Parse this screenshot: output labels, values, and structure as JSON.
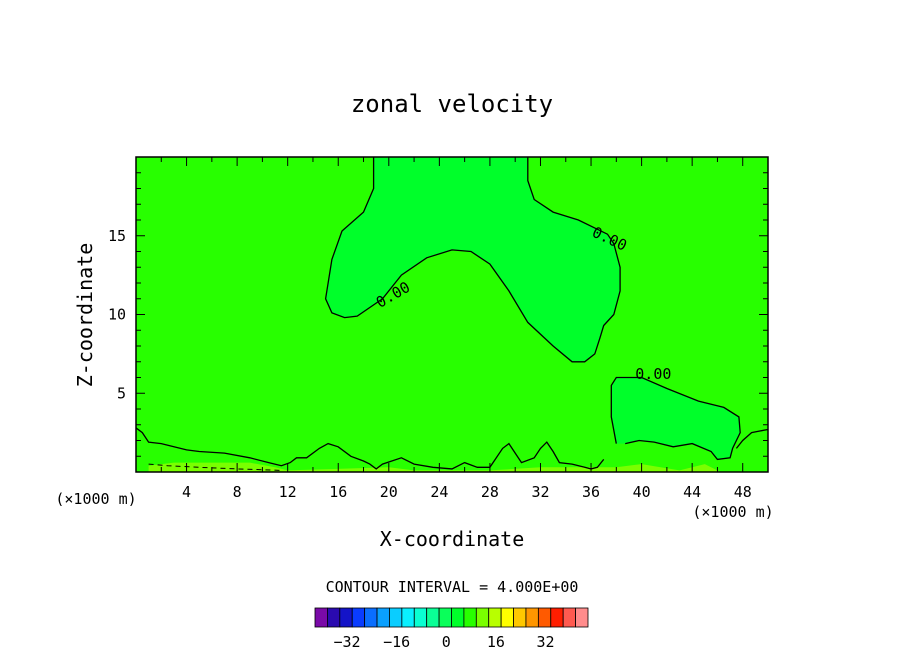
{
  "chart_data": {
    "type": "contour",
    "title": "zonal velocity",
    "xlabel": "X-coordinate",
    "ylabel": "Z-coordinate",
    "x_unit_left": "(×1000 m)",
    "x_unit_right": "(×1000 m)",
    "xlim": [
      0,
      50
    ],
    "ylim": [
      0,
      20
    ],
    "xticks": [
      4,
      8,
      12,
      16,
      20,
      24,
      28,
      32,
      36,
      40,
      44,
      48
    ],
    "yticks": [
      5,
      10,
      15
    ],
    "contour_label": "0.00",
    "contour_interval_text": "CONTOUR INTERVAL = 4.000E+00",
    "colorbar": {
      "levels": [
        -36,
        -32,
        -28,
        -24,
        -20,
        -16,
        -12,
        -8,
        -4,
        0,
        4,
        8,
        12,
        16,
        20,
        24,
        28,
        32,
        36
      ],
      "tick_labels": [
        "-32",
        "-16",
        "0",
        "16",
        "32"
      ],
      "tick_values": [
        -32,
        -16,
        0,
        16,
        32
      ],
      "colors": [
        "#7a0aa8",
        "#2a0ab0",
        "#1414c8",
        "#0a3cff",
        "#0a6eff",
        "#0aa0ff",
        "#0acdff",
        "#0af0ff",
        "#0affd2",
        "#0aff96",
        "#0aff5a",
        "#00ff2a",
        "#28ff00",
        "#7aff00",
        "#b8ff00",
        "#ffff00",
        "#ffc800",
        "#ff9600",
        "#ff5a00",
        "#ff1e00",
        "#ff5a50",
        "#ff8c8c"
      ]
    },
    "fills": {
      "background_color": "#28ff00",
      "negative_region_color": "#00ff2a",
      "positive_near_surface_color": "#7aff00"
    },
    "contours": [
      {
        "name": "upper-negative-region",
        "value": 0.0,
        "points": [
          [
            18.8,
            20.0
          ],
          [
            18.8,
            18.0
          ],
          [
            18.0,
            16.5
          ],
          [
            16.3,
            15.3
          ],
          [
            15.5,
            13.5
          ],
          [
            15.0,
            11.0
          ],
          [
            15.5,
            10.1
          ],
          [
            16.5,
            9.8
          ],
          [
            17.5,
            9.9
          ],
          [
            19.5,
            11.0
          ],
          [
            21.0,
            12.5
          ],
          [
            23.0,
            13.6
          ],
          [
            25.0,
            14.1
          ],
          [
            26.5,
            14.0
          ],
          [
            28.0,
            13.2
          ],
          [
            29.5,
            11.5
          ],
          [
            31.0,
            9.5
          ],
          [
            33.0,
            8.0
          ],
          [
            34.5,
            7.0
          ],
          [
            35.5,
            7.0
          ],
          [
            36.3,
            7.5
          ],
          [
            36.7,
            8.5
          ],
          [
            37.0,
            9.3
          ],
          [
            37.8,
            10.0
          ],
          [
            38.3,
            11.5
          ],
          [
            38.3,
            13.0
          ],
          [
            37.8,
            14.5
          ],
          [
            37.3,
            15.1
          ],
          [
            35.0,
            16.0
          ],
          [
            33.0,
            16.5
          ],
          [
            31.5,
            17.3
          ],
          [
            31.0,
            18.5
          ],
          [
            31.0,
            20.0
          ]
        ],
        "labels": [
          {
            "x": 19.3,
            "y": 10.4
          },
          {
            "x": 36.0,
            "y": 15.0
          }
        ]
      },
      {
        "name": "right-negative-region",
        "value": 0.0,
        "points": [
          [
            38.0,
            1.8
          ],
          [
            37.6,
            3.5
          ],
          [
            37.6,
            5.5
          ],
          [
            38.0,
            6.0
          ],
          [
            40.0,
            6.0
          ],
          [
            42.0,
            5.3
          ],
          [
            44.5,
            4.5
          ],
          [
            46.5,
            4.1
          ],
          [
            47.7,
            3.5
          ],
          [
            47.8,
            2.5
          ],
          [
            47.2,
            1.5
          ],
          [
            47.0,
            0.9
          ],
          [
            46.0,
            0.8
          ],
          [
            45.5,
            1.3
          ],
          [
            44.0,
            1.8
          ],
          [
            42.5,
            1.6
          ],
          [
            41.0,
            1.9
          ],
          [
            39.8,
            2.0
          ],
          [
            38.7,
            1.8
          ]
        ],
        "labels": [
          {
            "x": 39.5,
            "y": 5.9
          }
        ]
      },
      {
        "name": "bottom-left-wavy",
        "value": 0.0,
        "points": [
          [
            0.0,
            2.8
          ],
          [
            0.5,
            2.5
          ],
          [
            1.0,
            1.9
          ],
          [
            2.0,
            1.8
          ],
          [
            3.0,
            1.6
          ],
          [
            4.0,
            1.4
          ],
          [
            5.0,
            1.3
          ],
          [
            7.0,
            1.2
          ],
          [
            9.0,
            0.9
          ],
          [
            10.5,
            0.6
          ],
          [
            11.5,
            0.4
          ],
          [
            12.2,
            0.6
          ],
          [
            12.7,
            0.9
          ],
          [
            13.5,
            0.9
          ],
          [
            14.5,
            1.5
          ],
          [
            15.2,
            1.8
          ],
          [
            16.0,
            1.6
          ],
          [
            17.0,
            1.0
          ],
          [
            18.0,
            0.7
          ],
          [
            18.5,
            0.5
          ],
          [
            19.0,
            0.2
          ],
          [
            19.5,
            0.5
          ],
          [
            21.0,
            0.9
          ],
          [
            22.0,
            0.5
          ],
          [
            23.5,
            0.3
          ],
          [
            25.0,
            0.2
          ],
          [
            26.0,
            0.6
          ],
          [
            27.0,
            0.3
          ],
          [
            28.0,
            0.3
          ],
          [
            29.0,
            1.5
          ],
          [
            29.5,
            1.8
          ],
          [
            30.0,
            1.2
          ],
          [
            30.5,
            0.6
          ],
          [
            31.5,
            0.9
          ],
          [
            32.0,
            1.5
          ],
          [
            32.5,
            1.9
          ],
          [
            33.0,
            1.3
          ],
          [
            33.5,
            0.6
          ],
          [
            34.5,
            0.5
          ],
          [
            35.5,
            0.3
          ],
          [
            36.0,
            0.2
          ],
          [
            36.5,
            0.3
          ],
          [
            37.0,
            0.8
          ]
        ]
      },
      {
        "name": "bottom-right-wavy",
        "value": 0.0,
        "points": [
          [
            47.5,
            1.5
          ],
          [
            48.0,
            2.0
          ],
          [
            48.7,
            2.5
          ],
          [
            49.3,
            2.6
          ],
          [
            50.0,
            2.7
          ]
        ]
      },
      {
        "name": "near-surface-positive",
        "value": 0.0,
        "points": [
          [
            1.0,
            0.4
          ],
          [
            3.0,
            0.6
          ],
          [
            6.0,
            0.6
          ],
          [
            9.0,
            0.6
          ],
          [
            11.0,
            0.3
          ],
          [
            12.0,
            0.1
          ],
          [
            20.0,
            0.3
          ],
          [
            22.0,
            0.1
          ],
          [
            28.0,
            0.1
          ],
          [
            32.0,
            0.3
          ],
          [
            38.0,
            0.3
          ],
          [
            40.0,
            0.5
          ],
          [
            41.5,
            0.3
          ],
          [
            43.0,
            0.1
          ],
          [
            45.0,
            0.5
          ],
          [
            46.0,
            0.1
          ]
        ]
      }
    ],
    "dashed_contour": {
      "points": [
        [
          1.0,
          0.5
        ],
        [
          2.5,
          0.4
        ],
        [
          5.0,
          0.3
        ],
        [
          8.0,
          0.2
        ],
        [
          11.5,
          0.1
        ]
      ]
    }
  }
}
